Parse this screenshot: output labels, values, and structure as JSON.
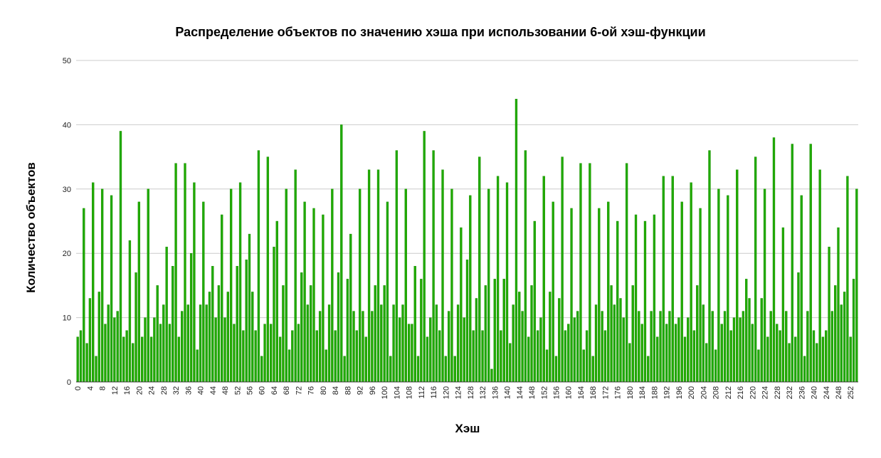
{
  "chart_data": {
    "type": "bar",
    "title": "Распределение объектов по значению хэша при использовании 6-ой хэш-функции",
    "xlabel": "Хэш",
    "ylabel": "Количество объектов",
    "ylim": [
      0,
      50
    ],
    "yticks": [
      0,
      10,
      20,
      30,
      40,
      50
    ],
    "xtick_step": 4,
    "grid": true,
    "legend": "none",
    "bar_color": "#1faa00",
    "bar_edge_color": "#178a00",
    "categories": [
      0,
      1,
      2,
      3,
      4,
      5,
      6,
      7,
      8,
      9,
      10,
      11,
      12,
      13,
      14,
      15,
      16,
      17,
      18,
      19,
      20,
      21,
      22,
      23,
      24,
      25,
      26,
      27,
      28,
      29,
      30,
      31,
      32,
      33,
      34,
      35,
      36,
      37,
      38,
      39,
      40,
      41,
      42,
      43,
      44,
      45,
      46,
      47,
      48,
      49,
      50,
      51,
      52,
      53,
      54,
      55,
      56,
      57,
      58,
      59,
      60,
      61,
      62,
      63,
      64,
      65,
      66,
      67,
      68,
      69,
      70,
      71,
      72,
      73,
      74,
      75,
      76,
      77,
      78,
      79,
      80,
      81,
      82,
      83,
      84,
      85,
      86,
      87,
      88,
      89,
      90,
      91,
      92,
      93,
      94,
      95,
      96,
      97,
      98,
      99,
      100,
      101,
      102,
      103,
      104,
      105,
      106,
      107,
      108,
      109,
      110,
      111,
      112,
      113,
      114,
      115,
      116,
      117,
      118,
      119,
      120,
      121,
      122,
      123,
      124,
      125,
      126,
      127,
      128,
      129,
      130,
      131,
      132,
      133,
      134,
      135,
      136,
      137,
      138,
      139,
      140,
      141,
      142,
      143,
      144,
      145,
      146,
      147,
      148,
      149,
      150,
      151,
      152,
      153,
      154,
      155,
      156,
      157,
      158,
      159,
      160,
      161,
      162,
      163,
      164,
      165,
      166,
      167,
      168,
      169,
      170,
      171,
      172,
      173,
      174,
      175,
      176,
      177,
      178,
      179,
      180,
      181,
      182,
      183,
      184,
      185,
      186,
      187,
      188,
      189,
      190,
      191,
      192,
      193,
      194,
      195,
      196,
      197,
      198,
      199,
      200,
      201,
      202,
      203,
      204,
      205,
      206,
      207,
      208,
      209,
      210,
      211,
      212,
      213,
      214,
      215,
      216,
      217,
      218,
      219,
      220,
      221,
      222,
      223,
      224,
      225,
      226,
      227,
      228,
      229,
      230,
      231,
      232,
      233,
      234,
      235,
      236,
      237,
      238,
      239,
      240,
      241,
      242,
      243,
      244,
      245,
      246,
      247,
      248,
      249,
      250,
      251,
      252,
      253,
      254
    ],
    "values": [
      7,
      8,
      27,
      6,
      13,
      31,
      4,
      14,
      30,
      9,
      12,
      29,
      10,
      11,
      39,
      7,
      8,
      22,
      6,
      17,
      28,
      7,
      10,
      30,
      7,
      10,
      15,
      9,
      12,
      21,
      9,
      18,
      34,
      7,
      11,
      34,
      12,
      20,
      31,
      5,
      12,
      28,
      12,
      14,
      18,
      10,
      15,
      26,
      10,
      14,
      30,
      9,
      18,
      31,
      8,
      19,
      23,
      14,
      8,
      36,
      4,
      9,
      35,
      9,
      21,
      25,
      7,
      15,
      30,
      5,
      8,
      33,
      9,
      17,
      28,
      12,
      15,
      27,
      8,
      11,
      26,
      5,
      12,
      30,
      8,
      17,
      40,
      4,
      16,
      23,
      11,
      8,
      30,
      11,
      7,
      33,
      11,
      15,
      33,
      12,
      15,
      28,
      4,
      12,
      36,
      10,
      12,
      30,
      9,
      9,
      18,
      4,
      16,
      39,
      7,
      10,
      36,
      12,
      8,
      33,
      4,
      11,
      30,
      4,
      12,
      24,
      10,
      19,
      29,
      8,
      13,
      35,
      8,
      15,
      30,
      2,
      16,
      32,
      8,
      16,
      31,
      6,
      12,
      44,
      14,
      11,
      36,
      7,
      15,
      25,
      8,
      10,
      32,
      5,
      14,
      28,
      4,
      13,
      35,
      8,
      9,
      27,
      10,
      11,
      34,
      5,
      8,
      34,
      4,
      12,
      27,
      11,
      8,
      28,
      15,
      12,
      25,
      13,
      10,
      34,
      6,
      15,
      26,
      11,
      9,
      25,
      4,
      11,
      26,
      7,
      11,
      32,
      9,
      11,
      32,
      9,
      10,
      28,
      7,
      10,
      31,
      8,
      15,
      27,
      12,
      6,
      36,
      11,
      5,
      30,
      9,
      11,
      29,
      8,
      10,
      33,
      10,
      11,
      16,
      13,
      9,
      35,
      5,
      13,
      30,
      7,
      11,
      38,
      9,
      8,
      24,
      11,
      6,
      37,
      7,
      17,
      29,
      4,
      11,
      37,
      8,
      6,
      33,
      7,
      8,
      21,
      11,
      15,
      24,
      12,
      14,
      32,
      7,
      16,
      30
    ]
  }
}
